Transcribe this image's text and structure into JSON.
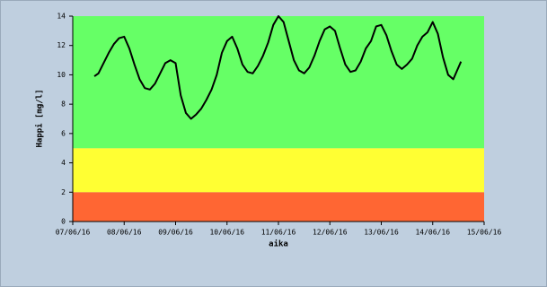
{
  "chart_data": {
    "type": "line",
    "x_label": "aika",
    "y_label": "Happi [mg/l]",
    "color": "#000000",
    "x": [
      0.42,
      0.5,
      0.6,
      0.7,
      0.8,
      0.9,
      1.0,
      1.1,
      1.2,
      1.3,
      1.4,
      1.5,
      1.6,
      1.7,
      1.8,
      1.9,
      2.0,
      2.1,
      2.2,
      2.3,
      2.4,
      2.5,
      2.6,
      2.7,
      2.8,
      2.9,
      3.0,
      3.1,
      3.2,
      3.3,
      3.4,
      3.5,
      3.6,
      3.7,
      3.8,
      3.9,
      4.0,
      4.1,
      4.2,
      4.3,
      4.4,
      4.5,
      4.6,
      4.7,
      4.8,
      4.9,
      5.0,
      5.1,
      5.2,
      5.3,
      5.4,
      5.5,
      5.6,
      5.7,
      5.8,
      5.9,
      6.0,
      6.1,
      6.2,
      6.3,
      6.4,
      6.5,
      6.6,
      6.7,
      6.8,
      6.9,
      7.0,
      7.1,
      7.2,
      7.3,
      7.4,
      7.5,
      7.55
    ],
    "values": [
      9.9,
      10.1,
      10.8,
      11.5,
      12.1,
      12.5,
      12.6,
      11.8,
      10.7,
      9.7,
      9.1,
      9.0,
      9.4,
      10.1,
      10.8,
      11.0,
      10.8,
      8.6,
      7.4,
      7.0,
      7.3,
      7.7,
      8.3,
      9.0,
      10.0,
      11.5,
      12.3,
      12.6,
      11.8,
      10.7,
      10.2,
      10.1,
      10.6,
      11.3,
      12.2,
      13.4,
      14.0,
      13.6,
      12.3,
      11.0,
      10.3,
      10.1,
      10.5,
      11.3,
      12.3,
      13.1,
      13.3,
      13.0,
      11.8,
      10.7,
      10.2,
      10.3,
      10.9,
      11.8,
      12.3,
      13.3,
      13.4,
      12.7,
      11.6,
      10.7,
      10.4,
      10.7,
      11.1,
      12.0,
      12.6,
      12.9,
      13.6,
      12.8,
      11.2,
      10.0,
      9.7,
      10.5,
      10.9
    ],
    "bands": [
      {
        "from": 0,
        "to": 2,
        "color": "#ff6633"
      },
      {
        "from": 2,
        "to": 5,
        "color": "#ffff33"
      },
      {
        "from": 5,
        "to": 14,
        "color": "#66ff66"
      }
    ],
    "xlim": [
      0,
      8
    ],
    "xticks": [
      {
        "value": 0,
        "label": "07/06/16"
      },
      {
        "value": 1,
        "label": "08/06/16"
      },
      {
        "value": 2,
        "label": "09/06/16"
      },
      {
        "value": 3,
        "label": "10/06/16"
      },
      {
        "value": 4,
        "label": "11/06/16"
      },
      {
        "value": 5,
        "label": "12/06/16"
      },
      {
        "value": 6,
        "label": "13/06/16"
      },
      {
        "value": 7,
        "label": "14/06/16"
      },
      {
        "value": 8,
        "label": "15/06/16"
      }
    ],
    "ylim": [
      0,
      14
    ],
    "yticks": [
      0,
      2,
      4,
      6,
      8,
      10,
      12,
      14
    ]
  }
}
